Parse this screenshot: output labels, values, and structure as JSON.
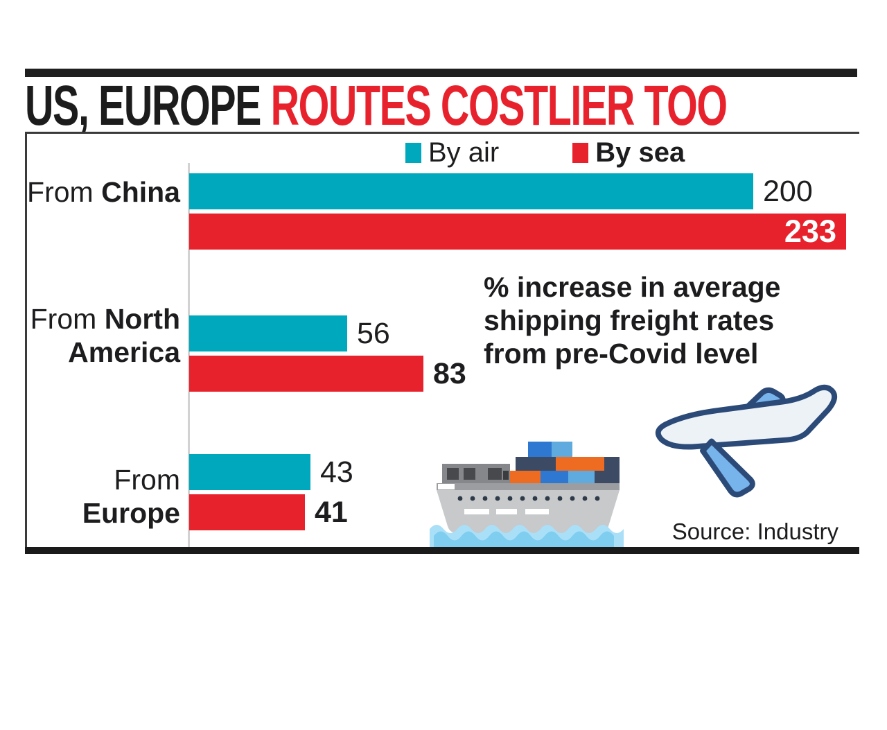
{
  "title": {
    "black_part": "US, EUROPE ",
    "red_part": "ROUTES COSTLIER TOO"
  },
  "legend": {
    "air_label": "By air",
    "sea_label": "By sea"
  },
  "annotation": "% increase in average\nshipping freight rates\nfrom pre-Covid level",
  "source": "Source: Industry",
  "colors": {
    "air_teal": "#00a8bd",
    "sea_red": "#e8222c",
    "headline_red": "#e8222c",
    "text_black": "#1d1d1f",
    "wave_blue": "#7fcdef"
  },
  "icons": {
    "ship": "cargo-ship-icon",
    "plane": "airplane-icon"
  },
  "category_labels": [
    {
      "line1_regular": "From ",
      "line1_bold": "China",
      "line2_bold": ""
    },
    {
      "line1_regular": "From ",
      "line1_bold": "North",
      "line2_bold": "America"
    },
    {
      "line1_regular": "From",
      "line1_bold": "",
      "line2_bold": "Europe"
    }
  ],
  "chart_data": {
    "type": "bar",
    "orientation": "horizontal",
    "title": "US, EUROPE ROUTES COSTLIER TOO",
    "note": "% increase in average shipping freight rates from pre-Covid level",
    "categories": [
      "From China",
      "From North America",
      "From Europe"
    ],
    "series": [
      {
        "name": "By air",
        "color": "#00a8bd",
        "values": [
          200,
          56,
          43
        ]
      },
      {
        "name": "By sea",
        "color": "#e8222c",
        "values": [
          233,
          83,
          41
        ]
      }
    ],
    "xlim": [
      0,
      233
    ],
    "value_labels": true,
    "legend_position": "top",
    "grid": false,
    "source": "Industry"
  }
}
